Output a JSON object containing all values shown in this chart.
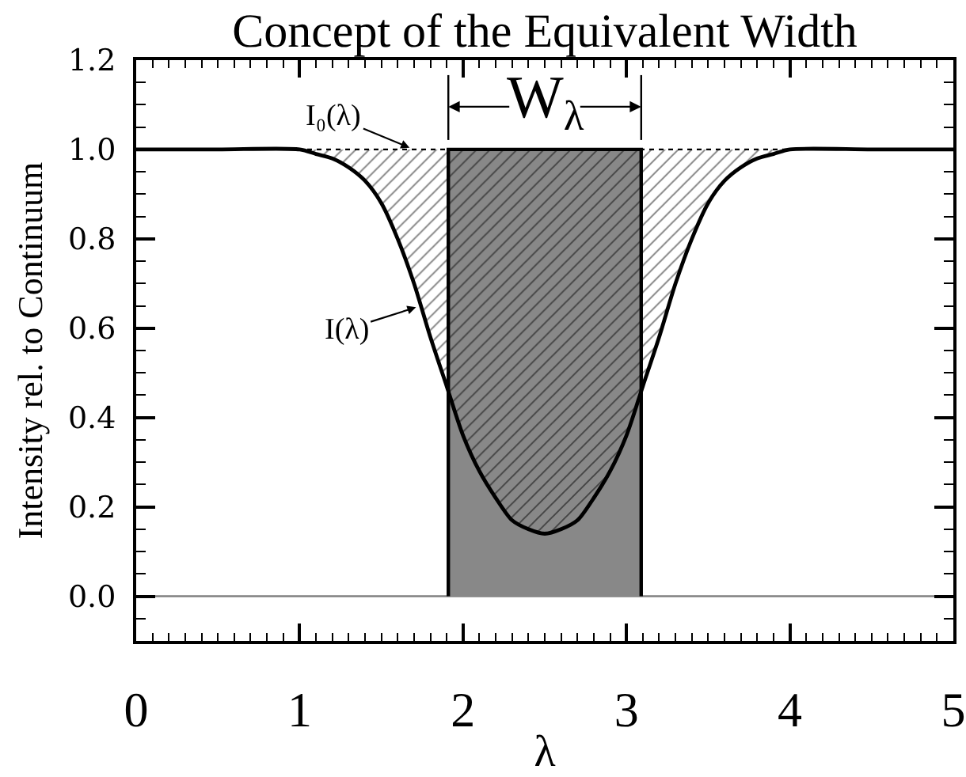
{
  "chart_data": {
    "type": "line",
    "title": "Concept of the Equivalent Width",
    "xlabel": "λ",
    "ylabel": "Intensity rel. to Continuum",
    "xlim": [
      0,
      5
    ],
    "ylim": [
      -0.1,
      1.2
    ],
    "xticks": [
      0,
      {
        "value": 0.1,
        "label": null
      },
      {
        "value": 0.2,
        "label": null
      },
      {
        "value": 0.3,
        "label": null
      },
      {
        "value": 0.4,
        "label": null
      },
      {
        "value": 0.5,
        "label": null
      },
      {
        "value": 0.6,
        "label": null
      },
      {
        "value": 0.7,
        "label": null
      },
      {
        "value": 0.8,
        "label": null
      },
      {
        "value": 0.9,
        "label": null
      },
      1,
      {
        "value": 1.1,
        "label": null
      },
      {
        "value": 1.2,
        "label": null
      },
      {
        "value": 1.3,
        "label": null
      },
      {
        "value": 1.4,
        "label": null
      },
      {
        "value": 1.5,
        "label": null
      },
      {
        "value": 1.6,
        "label": null
      },
      {
        "value": 1.7,
        "label": null
      },
      {
        "value": 1.8,
        "label": null
      },
      {
        "value": 1.9,
        "label": null
      },
      2,
      {
        "value": 2.1,
        "label": null
      },
      {
        "value": 2.2,
        "label": null
      },
      {
        "value": 2.3,
        "label": null
      },
      {
        "value": 2.4,
        "label": null
      },
      {
        "value": 2.5,
        "label": null
      },
      {
        "value": 2.6,
        "label": null
      },
      {
        "value": 2.7,
        "label": null
      },
      {
        "value": 2.8,
        "label": null
      },
      {
        "value": 2.9,
        "label": null
      },
      3,
      {
        "value": 3.1,
        "label": null
      },
      {
        "value": 3.2,
        "label": null
      },
      {
        "value": 3.3,
        "label": null
      },
      {
        "value": 3.4,
        "label": null
      },
      {
        "value": 3.5,
        "label": null
      },
      {
        "value": 3.6,
        "label": null
      },
      {
        "value": 3.7,
        "label": null
      },
      {
        "value": 3.8,
        "label": null
      },
      {
        "value": 3.9,
        "label": null
      },
      4,
      {
        "value": 4.1,
        "label": null
      },
      {
        "value": 4.2,
        "label": null
      },
      {
        "value": 4.3,
        "label": null
      },
      {
        "value": 4.4,
        "label": null
      },
      {
        "value": 4.5,
        "label": null
      },
      {
        "value": 4.6,
        "label": null
      },
      {
        "value": 4.7,
        "label": null
      },
      {
        "value": 4.8,
        "label": null
      },
      {
        "value": 4.9,
        "label": null
      },
      5
    ],
    "yticks": [
      {
        "value": -0.05,
        "label": null
      },
      {
        "value": 0,
        "label": "0.0"
      },
      {
        "value": 0.05,
        "label": null
      },
      {
        "value": 0.1,
        "label": null
      },
      {
        "value": 0.15,
        "label": null
      },
      0.2,
      {
        "value": 0.25,
        "label": null
      },
      {
        "value": 0.3,
        "label": null
      },
      {
        "value": 0.35,
        "label": null
      },
      0.4,
      {
        "value": 0.45,
        "label": null
      },
      {
        "value": 0.5,
        "label": null
      },
      {
        "value": 0.55,
        "label": null
      },
      0.6,
      {
        "value": 0.65,
        "label": null
      },
      {
        "value": 0.7,
        "label": null
      },
      {
        "value": 0.75,
        "label": null
      },
      0.8,
      {
        "value": 0.85,
        "label": null
      },
      {
        "value": 0.9,
        "label": null
      },
      {
        "value": 0.95,
        "label": null
      },
      {
        "value": 1,
        "label": "1.0"
      },
      {
        "value": 1.05,
        "label": null
      },
      {
        "value": 1.1,
        "label": null
      },
      {
        "value": 1.15,
        "label": null
      },
      1.2
    ],
    "series": [
      {
        "type": "area",
        "color": "#888888",
        "x": [
          1.91,
          1.91,
          3.09,
          3.09
        ],
        "values": [
          0,
          1,
          1,
          0
        ]
      },
      {
        "color": "#000000",
        "x": [
          0,
          0.5,
          1.0,
          1.1,
          1.2,
          1.3,
          1.4,
          1.5,
          1.6,
          1.7,
          1.8,
          1.9,
          2.0,
          2.1,
          2.2,
          2.3,
          2.4,
          2.5,
          2.6,
          2.7,
          2.8,
          2.9,
          3.0,
          3.1,
          3.2,
          3.3,
          3.4,
          3.5,
          3.6,
          3.7,
          3.8,
          3.9,
          4.0,
          4.5,
          5.0
        ],
        "values": [
          1.0,
          1.0,
          1.0,
          0.99,
          0.98,
          0.96,
          0.93,
          0.88,
          0.8,
          0.7,
          0.58,
          0.47,
          0.36,
          0.28,
          0.22,
          0.17,
          0.15,
          0.14,
          0.15,
          0.17,
          0.22,
          0.28,
          0.36,
          0.47,
          0.58,
          0.7,
          0.8,
          0.88,
          0.93,
          0.96,
          0.98,
          0.99,
          1.0,
          1.0,
          1.0
        ],
        "lower": [
          1.0,
          1.0,
          1.0,
          0.99,
          0.98,
          0.96,
          0.93,
          0.88,
          0.8,
          0.7,
          0.58,
          0.47,
          0.36,
          0.28,
          0.22,
          0.17,
          0.15,
          0.14,
          0.15,
          0.17,
          0.22,
          0.28,
          0.36,
          0.47,
          0.58,
          0.7,
          0.8,
          0.88,
          0.93,
          0.96,
          0.98,
          0.99,
          1.0,
          1.0,
          1.0
        ],
        "upper": [
          1.0,
          1.0,
          1.0,
          1.0,
          1.0,
          1.0,
          1.0,
          1.0,
          1.0,
          1.0,
          1.0,
          1.0,
          1.0,
          1.0,
          1.0,
          1.0,
          1.0,
          1.0,
          1.0,
          1.0,
          1.0,
          1.0,
          1.0,
          1.0,
          1.0,
          1.0,
          1.0,
          1.0,
          1.0,
          1.0,
          1.0,
          1.0,
          1.0,
          1.0,
          1.0
        ]
      }
    ],
    "ref_lines": [
      {
        "axis": "y",
        "value": 0,
        "color": "#808080"
      },
      {
        "axis": "y",
        "value": 1,
        "color": "#000000",
        "line_style": "dotted"
      }
    ],
    "annotations": [
      {
        "text": "I₀(λ)",
        "x": 1.7,
        "y": 1.0
      },
      {
        "text": "I(λ)",
        "x": 1.74,
        "y": 0.65
      },
      {
        "text": "W$_{λ}$",
        "x": 2.5,
        "y": 1.0
      }
    ]
  }
}
